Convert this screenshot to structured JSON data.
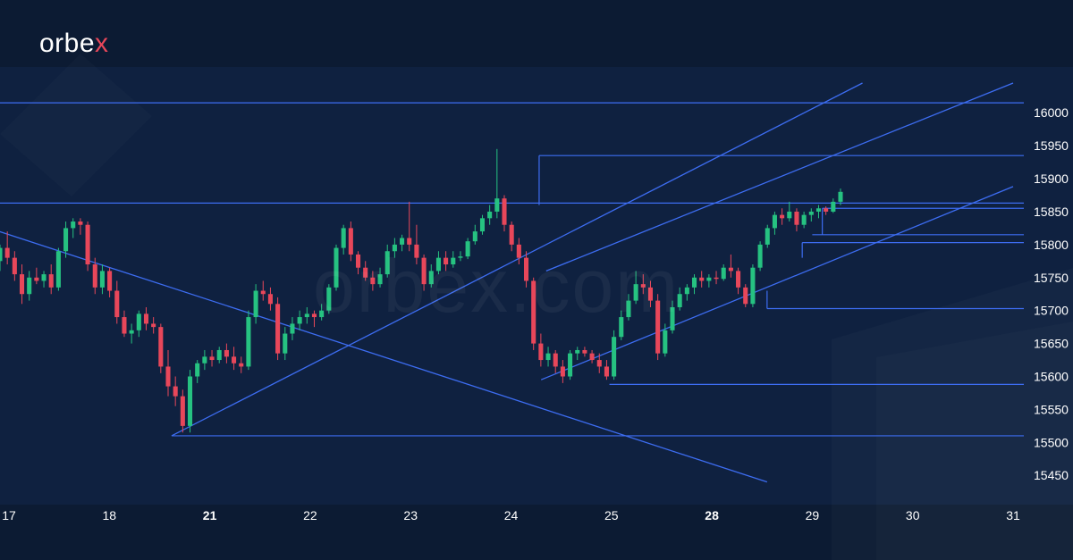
{
  "brand": {
    "logo_text": "orbe",
    "logo_x": "x",
    "watermark": "orbex.com"
  },
  "colors": {
    "background": "#0c1b33",
    "plot_background": "#0f2140",
    "bull": "#26c281",
    "bear": "#e8475a",
    "trendline": "#3d6df2",
    "text": "#ffffff"
  },
  "chart_data": {
    "type": "candlestick",
    "y_axis": {
      "min": 15430,
      "max": 16045,
      "ticks": [
        16000,
        15950,
        15900,
        15850,
        15800,
        15750,
        15700,
        15650,
        15600,
        15550,
        15500,
        15450
      ]
    },
    "x_axis": {
      "ticks": [
        {
          "label": "17",
          "x": 0,
          "bold": false
        },
        {
          "label": "18",
          "x": 1,
          "bold": false
        },
        {
          "label": "21",
          "x": 2,
          "bold": true
        },
        {
          "label": "22",
          "x": 3,
          "bold": false
        },
        {
          "label": "23",
          "x": 4,
          "bold": false
        },
        {
          "label": "24",
          "x": 5,
          "bold": false
        },
        {
          "label": "25",
          "x": 6,
          "bold": false
        },
        {
          "label": "28",
          "x": 7,
          "bold": true
        },
        {
          "label": "29",
          "x": 8,
          "bold": false
        },
        {
          "label": "30",
          "x": 9,
          "bold": false
        },
        {
          "label": "31",
          "x": 10,
          "bold": false
        }
      ]
    },
    "horizontal_levels": [
      {
        "price": 16015,
        "from": -0.2
      },
      {
        "price": 15935,
        "from": 5.28
      },
      {
        "price": 15863,
        "from": -0.2
      },
      {
        "price": 15855,
        "from": 8.1
      },
      {
        "price": 15815,
        "from": 8.0
      },
      {
        "price": 15803,
        "from": 7.9
      },
      {
        "price": 15703,
        "from": 7.55
      },
      {
        "price": 15588,
        "from": 5.98
      },
      {
        "price": 15510,
        "from": 1.62
      }
    ],
    "trendlines": [
      {
        "x1": -0.2,
        "y1": 15825,
        "x2": 7.55,
        "y2": 15440
      },
      {
        "x1": 1.62,
        "y1": 15510,
        "x2": 8.5,
        "y2": 16045
      },
      {
        "x1": 5.3,
        "y1": 15595,
        "x2": 10.0,
        "y2": 15888
      },
      {
        "x1": 5.35,
        "y1": 15760,
        "x2": 10.0,
        "y2": 16045
      }
    ],
    "candles": [
      [
        15775,
        15800,
        15760,
        15795
      ],
      [
        15795,
        15820,
        15770,
        15780
      ],
      [
        15780,
        15790,
        15745,
        15755
      ],
      [
        15755,
        15770,
        15710,
        15725
      ],
      [
        15725,
        15760,
        15715,
        15750
      ],
      [
        15750,
        15765,
        15740,
        15745
      ],
      [
        15745,
        15760,
        15735,
        15755
      ],
      [
        15755,
        15770,
        15725,
        15735
      ],
      [
        15735,
        15795,
        15730,
        15790
      ],
      [
        15790,
        15835,
        15780,
        15825
      ],
      [
        15825,
        15840,
        15810,
        15835
      ],
      [
        15835,
        15840,
        15815,
        15830
      ],
      [
        15830,
        15835,
        15760,
        15770
      ],
      [
        15770,
        15780,
        15725,
        15735
      ],
      [
        15735,
        15770,
        15725,
        15760
      ],
      [
        15760,
        15765,
        15720,
        15730
      ],
      [
        15730,
        15745,
        15680,
        15690
      ],
      [
        15690,
        15700,
        15660,
        15665
      ],
      [
        15665,
        15680,
        15650,
        15670
      ],
      [
        15670,
        15700,
        15660,
        15695
      ],
      [
        15695,
        15705,
        15670,
        15680
      ],
      [
        15680,
        15690,
        15665,
        15675
      ],
      [
        15675,
        15680,
        15605,
        15615
      ],
      [
        15615,
        15640,
        15570,
        15585
      ],
      [
        15585,
        15600,
        15555,
        15570
      ],
      [
        15570,
        15580,
        15515,
        15525
      ],
      [
        15525,
        15610,
        15515,
        15600
      ],
      [
        15600,
        15625,
        15590,
        15620
      ],
      [
        15620,
        15640,
        15610,
        15630
      ],
      [
        15630,
        15640,
        15615,
        15625
      ],
      [
        15625,
        15645,
        15620,
        15640
      ],
      [
        15640,
        15650,
        15620,
        15630
      ],
      [
        15630,
        15645,
        15610,
        15620
      ],
      [
        15620,
        15630,
        15605,
        15615
      ],
      [
        15615,
        15700,
        15610,
        15690
      ],
      [
        15690,
        15740,
        15680,
        15730
      ],
      [
        15730,
        15745,
        15715,
        15725
      ],
      [
        15725,
        15735,
        15700,
        15710
      ],
      [
        15710,
        15720,
        15625,
        15635
      ],
      [
        15635,
        15675,
        15625,
        15665
      ],
      [
        15665,
        15690,
        15655,
        15680
      ],
      [
        15680,
        15700,
        15670,
        15690
      ],
      [
        15690,
        15705,
        15680,
        15695
      ],
      [
        15695,
        15700,
        15675,
        15690
      ],
      [
        15690,
        15710,
        15685,
        15700
      ],
      [
        15700,
        15740,
        15695,
        15735
      ],
      [
        15735,
        15800,
        15730,
        15795
      ],
      [
        15795,
        15830,
        15785,
        15825
      ],
      [
        15825,
        15835,
        15775,
        15785
      ],
      [
        15785,
        15790,
        15755,
        15765
      ],
      [
        15765,
        15775,
        15745,
        15750
      ],
      [
        15750,
        15760,
        15730,
        15740
      ],
      [
        15740,
        15765,
        15735,
        15755
      ],
      [
        15755,
        15800,
        15750,
        15790
      ],
      [
        15790,
        15810,
        15780,
        15800
      ],
      [
        15800,
        15815,
        15790,
        15810
      ],
      [
        15810,
        15865,
        15790,
        15800
      ],
      [
        15800,
        15830,
        15770,
        15780
      ],
      [
        15780,
        15785,
        15730,
        15740
      ],
      [
        15740,
        15770,
        15735,
        15760
      ],
      [
        15760,
        15790,
        15755,
        15780
      ],
      [
        15780,
        15790,
        15760,
        15770
      ],
      [
        15770,
        15790,
        15765,
        15780
      ],
      [
        15780,
        15790,
        15775,
        15782
      ],
      [
        15782,
        15810,
        15778,
        15805
      ],
      [
        15805,
        15830,
        15800,
        15820
      ],
      [
        15820,
        15845,
        15815,
        15840
      ],
      [
        15840,
        15860,
        15830,
        15850
      ],
      [
        15850,
        15945,
        15840,
        15870
      ],
      [
        15870,
        15875,
        15820,
        15830
      ],
      [
        15830,
        15835,
        15790,
        15800
      ],
      [
        15800,
        15810,
        15770,
        15780
      ],
      [
        15780,
        15790,
        15735,
        15745
      ],
      [
        15745,
        15750,
        15640,
        15650
      ],
      [
        15650,
        15665,
        15615,
        15625
      ],
      [
        15625,
        15645,
        15615,
        15635
      ],
      [
        15635,
        15640,
        15605,
        15615
      ],
      [
        15615,
        15625,
        15590,
        15600
      ],
      [
        15600,
        15640,
        15595,
        15635
      ],
      [
        15635,
        15645,
        15625,
        15640
      ],
      [
        15640,
        15645,
        15630,
        15635
      ],
      [
        15635,
        15640,
        15620,
        15625
      ],
      [
        15625,
        15635,
        15605,
        15615
      ],
      [
        15615,
        15625,
        15595,
        15600
      ],
      [
        15600,
        15670,
        15595,
        15660
      ],
      [
        15660,
        15700,
        15655,
        15690
      ],
      [
        15690,
        15725,
        15685,
        15715
      ],
      [
        15715,
        15760,
        15710,
        15740
      ],
      [
        15740,
        15755,
        15725,
        15735
      ],
      [
        15735,
        15745,
        15705,
        15715
      ],
      [
        15715,
        15725,
        15625,
        15635
      ],
      [
        15635,
        15680,
        15630,
        15670
      ],
      [
        15670,
        15715,
        15665,
        15705
      ],
      [
        15705,
        15735,
        15700,
        15725
      ],
      [
        15725,
        15740,
        15715,
        15735
      ],
      [
        15735,
        15755,
        15725,
        15750
      ],
      [
        15750,
        15760,
        15735,
        15745
      ],
      [
        15745,
        15755,
        15735,
        15750
      ],
      [
        15750,
        15760,
        15740,
        15748
      ],
      [
        15748,
        15770,
        15745,
        15765
      ],
      [
        15765,
        15785,
        15750,
        15760
      ],
      [
        15760,
        15765,
        15725,
        15735
      ],
      [
        15735,
        15740,
        15705,
        15710
      ],
      [
        15710,
        15770,
        15705,
        15765
      ],
      [
        15765,
        15805,
        15760,
        15800
      ],
      [
        15800,
        15830,
        15795,
        15825
      ],
      [
        15825,
        15850,
        15815,
        15845
      ],
      [
        15845,
        15855,
        15830,
        15840
      ],
      [
        15840,
        15865,
        15835,
        15850
      ],
      [
        15850,
        15855,
        15820,
        15830
      ],
      [
        15830,
        15850,
        15825,
        15845
      ],
      [
        15845,
        15855,
        15835,
        15850
      ],
      [
        15850,
        15860,
        15840,
        15855
      ],
      [
        15855,
        15858,
        15845,
        15850
      ],
      [
        15850,
        15870,
        15848,
        15865
      ],
      [
        15865,
        15885,
        15860,
        15880
      ]
    ]
  }
}
